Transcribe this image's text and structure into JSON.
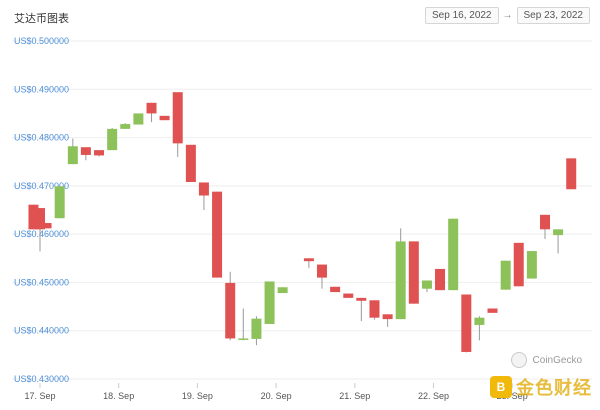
{
  "header": {
    "title": "艾达币图表"
  },
  "range": {
    "from": "Sep 16, 2022",
    "arrow": "→",
    "to": "Sep 23, 2022"
  },
  "watermark": {
    "coingecko": "CoinGecko",
    "jinse": "金色财经",
    "jinse_icon": "B"
  },
  "colors": {
    "up": "#8dc25b",
    "down": "#e05252",
    "axis_label": "#4e8fd6"
  },
  "chart_data": {
    "type": "candlestick",
    "title": "",
    "xlabel": "",
    "ylabel": "",
    "yticks": [
      "US$0.500000",
      "US$0.490000",
      "US$0.480000",
      "US$0.470000",
      "US$0.460000",
      "US$0.450000",
      "US$0.440000",
      "US$0.430000"
    ],
    "ylim": [
      0.43,
      0.5
    ],
    "xticks": [
      "17. Sep",
      "18. Sep",
      "19. Sep",
      "20. Sep",
      "21. Sep",
      "22. Sep",
      "23. Sep"
    ],
    "grid": true,
    "candles": [
      {
        "t": 16.917,
        "o": 0.4661,
        "h": 0.4661,
        "l": 0.461,
        "c": 0.461
      },
      {
        "t": 17.0,
        "o": 0.4654,
        "h": 0.4654,
        "l": 0.4564,
        "c": 0.461
      },
      {
        "t": 17.083,
        "o": 0.4623,
        "h": 0.4623,
        "l": 0.4612,
        "c": 0.4612
      },
      {
        "t": 17.25,
        "o": 0.4633,
        "h": 0.4699,
        "l": 0.4633,
        "c": 0.4699
      },
      {
        "t": 17.417,
        "o": 0.4745,
        "h": 0.4798,
        "l": 0.4745,
        "c": 0.4782
      },
      {
        "t": 17.583,
        "o": 0.478,
        "h": 0.478,
        "l": 0.4753,
        "c": 0.4764
      },
      {
        "t": 17.75,
        "o": 0.4774,
        "h": 0.4774,
        "l": 0.4761,
        "c": 0.4763
      },
      {
        "t": 17.917,
        "o": 0.4774,
        "h": 0.482,
        "l": 0.4774,
        "c": 0.4818
      },
      {
        "t": 18.083,
        "o": 0.4818,
        "h": 0.483,
        "l": 0.4818,
        "c": 0.4828
      },
      {
        "t": 18.25,
        "o": 0.4827,
        "h": 0.485,
        "l": 0.4827,
        "c": 0.485
      },
      {
        "t": 18.417,
        "o": 0.4872,
        "h": 0.4872,
        "l": 0.4832,
        "c": 0.485
      },
      {
        "t": 18.583,
        "o": 0.4845,
        "h": 0.4845,
        "l": 0.4836,
        "c": 0.4836
      },
      {
        "t": 18.75,
        "o": 0.4894,
        "h": 0.4894,
        "l": 0.476,
        "c": 0.4788
      },
      {
        "t": 18.917,
        "o": 0.4785,
        "h": 0.4785,
        "l": 0.4708,
        "c": 0.4708
      },
      {
        "t": 19.083,
        "o": 0.4707,
        "h": 0.4707,
        "l": 0.465,
        "c": 0.468
      },
      {
        "t": 19.25,
        "o": 0.4688,
        "h": 0.4688,
        "l": 0.451,
        "c": 0.451
      },
      {
        "t": 19.417,
        "o": 0.4499,
        "h": 0.4522,
        "l": 0.438,
        "c": 0.4384
      },
      {
        "t": 19.583,
        "o": 0.4384,
        "h": 0.4446,
        "l": 0.438,
        "c": 0.4384
      },
      {
        "t": 19.75,
        "o": 0.4383,
        "h": 0.443,
        "l": 0.437,
        "c": 0.4425
      },
      {
        "t": 19.917,
        "o": 0.4414,
        "h": 0.4502,
        "l": 0.4414,
        "c": 0.4502
      },
      {
        "t": 20.083,
        "o": 0.4478,
        "h": 0.449,
        "l": 0.4478,
        "c": 0.449
      },
      {
        "t": 20.417,
        "o": 0.455,
        "h": 0.455,
        "l": 0.453,
        "c": 0.4544
      },
      {
        "t": 20.583,
        "o": 0.4537,
        "h": 0.4537,
        "l": 0.4487,
        "c": 0.451
      },
      {
        "t": 20.75,
        "o": 0.4491,
        "h": 0.4491,
        "l": 0.448,
        "c": 0.448
      },
      {
        "t": 20.917,
        "o": 0.4477,
        "h": 0.4477,
        "l": 0.4468,
        "c": 0.4468
      },
      {
        "t": 21.083,
        "o": 0.4468,
        "h": 0.4468,
        "l": 0.442,
        "c": 0.4462
      },
      {
        "t": 21.25,
        "o": 0.4463,
        "h": 0.4463,
        "l": 0.4423,
        "c": 0.4427
      },
      {
        "t": 21.417,
        "o": 0.4434,
        "h": 0.4434,
        "l": 0.4408,
        "c": 0.4424
      },
      {
        "t": 21.583,
        "o": 0.4424,
        "h": 0.4612,
        "l": 0.4424,
        "c": 0.4585
      },
      {
        "t": 21.75,
        "o": 0.4585,
        "h": 0.4585,
        "l": 0.4456,
        "c": 0.4456
      },
      {
        "t": 21.917,
        "o": 0.4487,
        "h": 0.4504,
        "l": 0.448,
        "c": 0.4504
      },
      {
        "t": 22.083,
        "o": 0.4528,
        "h": 0.4528,
        "l": 0.4484,
        "c": 0.4484
      },
      {
        "t": 22.25,
        "o": 0.4484,
        "h": 0.4632,
        "l": 0.4484,
        "c": 0.4632
      },
      {
        "t": 22.417,
        "o": 0.4475,
        "h": 0.4475,
        "l": 0.4355,
        "c": 0.4356
      },
      {
        "t": 22.583,
        "o": 0.4412,
        "h": 0.443,
        "l": 0.438,
        "c": 0.4427
      },
      {
        "t": 22.75,
        "o": 0.4446,
        "h": 0.4446,
        "l": 0.4437,
        "c": 0.4437
      },
      {
        "t": 22.917,
        "o": 0.4485,
        "h": 0.4545,
        "l": 0.4485,
        "c": 0.4545
      },
      {
        "t": 23.083,
        "o": 0.4582,
        "h": 0.4582,
        "l": 0.4492,
        "c": 0.4492
      },
      {
        "t": 23.25,
        "o": 0.4508,
        "h": 0.4565,
        "l": 0.4508,
        "c": 0.4565
      },
      {
        "t": 23.417,
        "o": 0.464,
        "h": 0.464,
        "l": 0.459,
        "c": 0.461
      },
      {
        "t": 23.583,
        "o": 0.4598,
        "h": 0.461,
        "l": 0.456,
        "c": 0.461
      },
      {
        "t": 23.75,
        "o": 0.4757,
        "h": 0.4757,
        "l": 0.4693,
        "c": 0.4693
      }
    ]
  }
}
